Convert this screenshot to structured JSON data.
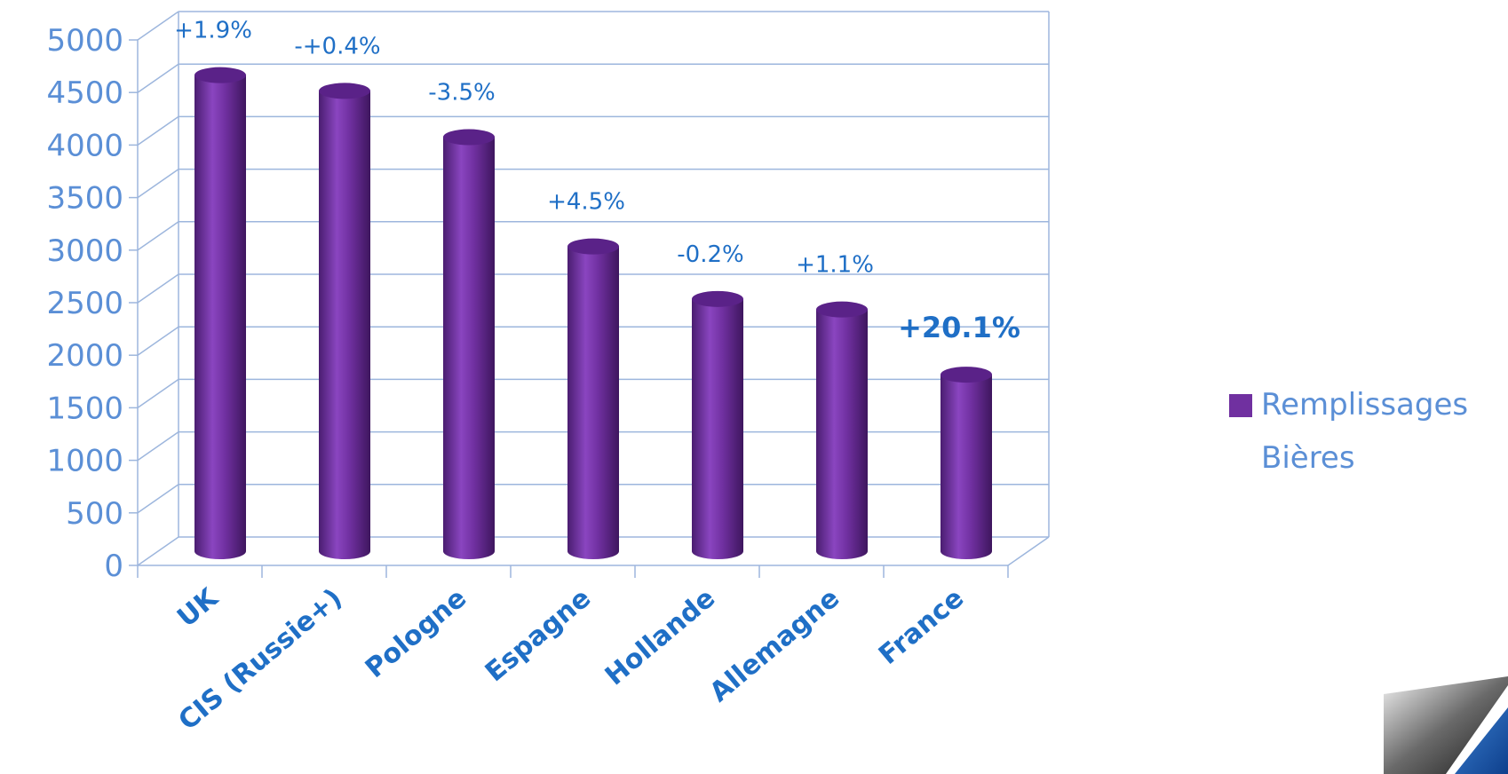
{
  "chart_data": {
    "type": "bar",
    "categories": [
      "UK",
      "CIS (Russie+)",
      "Pologne",
      "Espagne",
      "Hollande",
      "Allemagne",
      "France"
    ],
    "series": [
      {
        "name": "Remplissages Bières",
        "values": [
          4530,
          4380,
          3940,
          2900,
          2400,
          2300,
          1680
        ]
      }
    ],
    "data_labels": [
      "+1.9%",
      "-+0.4%",
      "-3.5%",
      "+4.5%",
      "-0.2%",
      "+1.1%",
      "+20.1%"
    ],
    "emphasized_label_index": 6,
    "y_ticks": [
      "0",
      "500",
      "1000",
      "1500",
      "2000",
      "2500",
      "3000",
      "3500",
      "4000",
      "4500",
      "5000"
    ],
    "ylim": [
      0,
      5000
    ],
    "grid": true,
    "legend_position": "right",
    "bar_shape": "cylinder",
    "colors": {
      "bar": "#7030a0",
      "axis_text": "#5b8fd6",
      "category_text": "#1f6fc6",
      "grid": "#9db6dd"
    }
  },
  "legend": {
    "label": "Remplissages Bières"
  }
}
